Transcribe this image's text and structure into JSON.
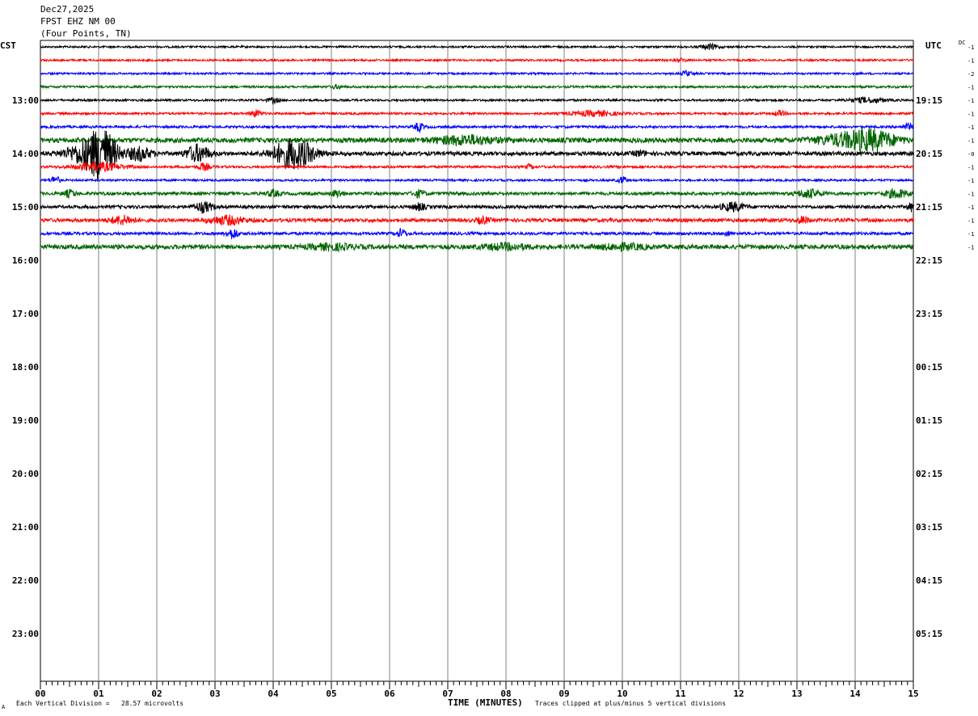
{
  "header": {
    "date": "Dec27,2025",
    "station": "FPST EHZ NM 00",
    "location": "(Four Points, TN)"
  },
  "left_tz": "CST",
  "right_tz": "UTC",
  "dc_label": "DC",
  "footer": {
    "left": "Each Vertical Division =   28.57 microvolts",
    "right": "Traces clipped at plus/minus 5 vertical divisions",
    "mark": "A"
  },
  "colors": {
    "trace_cycle": [
      "#000000",
      "#ff0000",
      "#0000ff",
      "#006400"
    ],
    "grid": "#808080",
    "axis": "#000000"
  },
  "chart_data": {
    "type": "line",
    "title": "FPST EHZ NM 00 (Four Points, TN)",
    "xlabel": "TIME (MINUTES)",
    "ylabel": "",
    "xlim": [
      0,
      15
    ],
    "x_ticks": [
      "00",
      "01",
      "02",
      "03",
      "04",
      "05",
      "06",
      "07",
      "08",
      "09",
      "10",
      "11",
      "12",
      "13",
      "14",
      "15"
    ],
    "left_hour_labels": [
      "13:00",
      "14:00",
      "15:00",
      "16:00",
      "17:00",
      "18:00",
      "19:00",
      "20:00",
      "21:00",
      "22:00",
      "23:00"
    ],
    "right_hour_labels": [
      "19:15",
      "20:15",
      "21:15",
      "22:15",
      "23:15",
      "00:15",
      "01:15",
      "02:15",
      "03:15",
      "04:15",
      "05:15"
    ],
    "label_every_rows": 4,
    "first_label_row": 4,
    "total_rows": 48,
    "minutes_per_row": 15,
    "grid": true,
    "traces": [
      {
        "dc": "-1",
        "noise": 1.2,
        "events": [
          [
            11.5,
            3,
            0.15
          ]
        ]
      },
      {
        "dc": "-1",
        "noise": 1.2,
        "events": [
          [
            11.0,
            2,
            0.1
          ]
        ]
      },
      {
        "dc": "-2",
        "noise": 1.2,
        "events": [
          [
            11.1,
            3,
            0.1
          ]
        ]
      },
      {
        "dc": "-1",
        "noise": 1.4,
        "events": [
          [
            5.1,
            2,
            0.1
          ]
        ]
      },
      {
        "dc": "-1",
        "noise": 1.3,
        "events": [
          [
            4.0,
            3,
            0.1
          ],
          [
            14.2,
            3,
            0.3
          ]
        ]
      },
      {
        "dc": "-1",
        "noise": 1.4,
        "events": [
          [
            3.7,
            4,
            0.1
          ],
          [
            9.5,
            3,
            0.4
          ],
          [
            12.7,
            3,
            0.1
          ]
        ]
      },
      {
        "dc": "-1",
        "noise": 1.5,
        "events": [
          [
            6.5,
            5,
            0.08
          ],
          [
            14.9,
            4,
            0.08
          ]
        ]
      },
      {
        "dc": "-1",
        "noise": 3.0,
        "events": [
          [
            7.3,
            5,
            0.5
          ],
          [
            13.8,
            6,
            0.5
          ],
          [
            14.3,
            10,
            0.4
          ]
        ]
      },
      {
        "dc": "-0",
        "noise": 2.5,
        "events": [
          [
            0.7,
            10,
            0.3
          ],
          [
            1.05,
            30,
            0.25
          ],
          [
            1.7,
            8,
            0.2
          ],
          [
            2.7,
            10,
            0.2
          ],
          [
            4.35,
            18,
            0.35
          ],
          [
            10.3,
            3,
            0.1
          ]
        ]
      },
      {
        "dc": "-1",
        "noise": 1.5,
        "events": [
          [
            1.0,
            5,
            0.4
          ],
          [
            2.8,
            4,
            0.1
          ],
          [
            8.4,
            3,
            0.05
          ]
        ]
      },
      {
        "dc": "-1",
        "noise": 1.3,
        "events": [
          [
            0.25,
            5,
            0.08
          ],
          [
            10.0,
            4,
            0.08
          ]
        ]
      },
      {
        "dc": "-1",
        "noise": 2.0,
        "events": [
          [
            0.5,
            4,
            0.1
          ],
          [
            4.0,
            4,
            0.1
          ],
          [
            5.1,
            4,
            0.1
          ],
          [
            6.5,
            4,
            0.1
          ],
          [
            13.2,
            5,
            0.2
          ],
          [
            14.7,
            5,
            0.2
          ]
        ]
      },
      {
        "dc": "-1",
        "noise": 2.0,
        "events": [
          [
            2.8,
            6,
            0.15
          ],
          [
            6.5,
            4,
            0.1
          ],
          [
            11.9,
            5,
            0.2
          ],
          [
            14.95,
            5,
            0.05
          ]
        ]
      },
      {
        "dc": "-1",
        "noise": 2.2,
        "events": [
          [
            1.4,
            5,
            0.2
          ],
          [
            3.2,
            5,
            0.3
          ],
          [
            7.6,
            4,
            0.1
          ],
          [
            13.1,
            4,
            0.1
          ]
        ]
      },
      {
        "dc": "-1",
        "noise": 1.8,
        "events": [
          [
            3.3,
            6,
            0.1
          ],
          [
            6.2,
            5,
            0.08
          ],
          [
            11.8,
            3,
            0.05
          ]
        ]
      },
      {
        "dc": "-1",
        "noise": 2.8,
        "events": [
          [
            5.0,
            3,
            0.4
          ],
          [
            8.0,
            3,
            0.4
          ],
          [
            10.0,
            3,
            0.4
          ]
        ]
      }
    ]
  }
}
